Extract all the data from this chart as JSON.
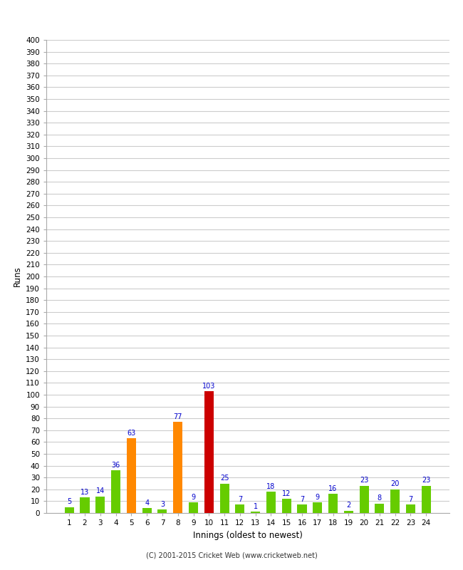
{
  "xlabel": "Innings (oldest to newest)",
  "ylabel": "Runs",
  "values": [
    5,
    13,
    14,
    36,
    63,
    4,
    3,
    77,
    9,
    103,
    25,
    7,
    1,
    18,
    12,
    7,
    9,
    16,
    2,
    23,
    8,
    20,
    7,
    23
  ],
  "innings": [
    1,
    2,
    3,
    4,
    5,
    6,
    7,
    8,
    9,
    10,
    11,
    12,
    13,
    14,
    15,
    16,
    17,
    18,
    19,
    20,
    21,
    22,
    23,
    24
  ],
  "bar_colors": [
    "#66cc00",
    "#66cc00",
    "#66cc00",
    "#66cc00",
    "#ff8800",
    "#66cc00",
    "#66cc00",
    "#ff8800",
    "#66cc00",
    "#cc0000",
    "#66cc00",
    "#66cc00",
    "#66cc00",
    "#66cc00",
    "#66cc00",
    "#66cc00",
    "#66cc00",
    "#66cc00",
    "#66cc00",
    "#66cc00",
    "#66cc00",
    "#66cc00",
    "#66cc00",
    "#66cc00"
  ],
  "ylim": [
    0,
    400
  ],
  "yticks": [
    0,
    10,
    20,
    30,
    40,
    50,
    60,
    70,
    80,
    90,
    100,
    110,
    120,
    130,
    140,
    150,
    160,
    170,
    180,
    190,
    200,
    210,
    220,
    230,
    240,
    250,
    260,
    270,
    280,
    290,
    300,
    310,
    320,
    330,
    340,
    350,
    360,
    370,
    380,
    390,
    400
  ],
  "label_color": "#0000cc",
  "background_color": "#ffffff",
  "grid_color": "#cccccc",
  "footer": "(C) 2001-2015 Cricket Web (www.cricketweb.net)",
  "bar_width": 0.6
}
